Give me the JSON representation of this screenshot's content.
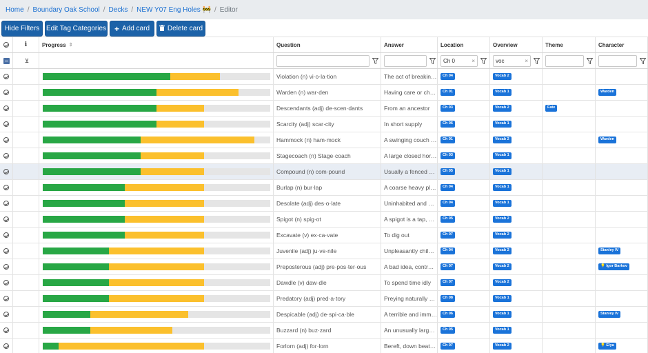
{
  "breadcrumb": [
    "Home",
    "Boundary Oak School",
    "Decks",
    "NEW Y07 Eng Holes 🚧",
    "Editor"
  ],
  "toolbar": {
    "hide_filters": "Hide Filters",
    "edit_tags": "Edit Tag Categories",
    "add_card": "Add card",
    "delete_card": "Delete card"
  },
  "columns": {
    "progress": "Progress",
    "question": "Question",
    "answer": "Answer",
    "location": "Location",
    "overview": "Overview",
    "theme": "Theme",
    "character": "Character"
  },
  "filters": {
    "location": "Ch 0",
    "overview": "voc",
    "question": "",
    "answer": "",
    "theme": "",
    "character": ""
  },
  "colors": {
    "green": "#28a745",
    "yellow": "#fbc02d",
    "badge": "#1a73d9"
  },
  "rows": [
    {
      "q": "Violation (n) vi·o·la·tion",
      "a": "The act of breaking a rule",
      "loc": "Ch 04",
      "ov": "Vocab 2",
      "theme": "",
      "char": "",
      "g": 0.56,
      "y": 0.78,
      "sel": false
    },
    {
      "q": "Warden (n) war·den",
      "a": "Having care or charge of",
      "loc": "Ch 01",
      "ov": "Vocab 1",
      "theme": "",
      "char": "Warden",
      "g": 0.5,
      "y": 0.86,
      "sel": false
    },
    {
      "q": "Descendants (adj) de·scen·dants",
      "a": "From an ancestor",
      "loc": "Ch 03",
      "ov": "Vocab 2",
      "theme": "Fate",
      "char": "",
      "g": 0.5,
      "y": 0.71,
      "sel": false
    },
    {
      "q": "Scarcity (adj) scar·city",
      "a": "In short supply",
      "loc": "Ch 06",
      "ov": "Vocab 1",
      "theme": "",
      "char": "",
      "g": 0.5,
      "y": 0.71,
      "sel": false
    },
    {
      "q": "Hammock (n) ham·mock",
      "a": "A swinging couch or bed",
      "loc": "Ch 01",
      "ov": "Vocab 2",
      "theme": "",
      "char": "Warden",
      "g": 0.43,
      "y": 0.93,
      "sel": false
    },
    {
      "q": "Stagecoach (n) Stage·coach",
      "a": "A large closed horse-drawn",
      "loc": "Ch 03",
      "ov": "Vocab 1",
      "theme": "",
      "char": "",
      "g": 0.43,
      "y": 0.71,
      "sel": false
    },
    {
      "q": "Compound (n) com·pound",
      "a": "Usually a fenced or walled",
      "loc": "Ch 05",
      "ov": "Vocab 1",
      "theme": "",
      "char": "",
      "g": 0.43,
      "y": 0.71,
      "sel": true
    },
    {
      "q": "Burlap (n) bur·lap",
      "a": "A coarse heavy plain-woven",
      "loc": "Ch 04",
      "ov": "Vocab 1",
      "theme": "",
      "char": "",
      "g": 0.36,
      "y": 0.71,
      "sel": false
    },
    {
      "q": "Desolate (adj) des·o·late",
      "a": "Uninhabited and gloomy",
      "loc": "Ch 04",
      "ov": "Vocab 1",
      "theme": "",
      "char": "",
      "g": 0.36,
      "y": 0.71,
      "sel": false
    },
    {
      "q": "Spigot (n) spig·ot",
      "a": "A spigot is a tap, a valve",
      "loc": "Ch 05",
      "ov": "Vocab 2",
      "theme": "",
      "char": "",
      "g": 0.36,
      "y": 0.71,
      "sel": false
    },
    {
      "q": "Excavate (v) ex·ca·vate",
      "a": "To dig out",
      "loc": "Ch 07",
      "ov": "Vocab 2",
      "theme": "",
      "char": "",
      "g": 0.36,
      "y": 0.71,
      "sel": false
    },
    {
      "q": "Juvenile (adj) ju·ve·nile",
      "a": "Unpleasantly childish",
      "loc": "Ch 04",
      "ov": "Vocab 2",
      "theme": "",
      "char": "Stanley IV",
      "g": 0.29,
      "y": 0.71,
      "sel": false
    },
    {
      "q": "Preposterous (adj) pre·pos·ter·ous",
      "a": "A bad idea, contrary to",
      "loc": "Ch 07",
      "ov": "Vocab 2",
      "theme": "",
      "char": "💡 Igor Barkov",
      "g": 0.29,
      "y": 0.71,
      "sel": false
    },
    {
      "q": "Dawdle (v) daw·dle",
      "a": "To spend time idly",
      "loc": "Ch 07",
      "ov": "Vocab 2",
      "theme": "",
      "char": "",
      "g": 0.29,
      "y": 0.71,
      "sel": false
    },
    {
      "q": "Predatory (adj) pred·a·tory",
      "a": "Preying naturally on others",
      "loc": "Ch 08",
      "ov": "Vocab 1",
      "theme": "",
      "char": "",
      "g": 0.29,
      "y": 0.71,
      "sel": false
    },
    {
      "q": "Despicable (adj) de·spi·ca·ble",
      "a": "A terrible and immoral",
      "loc": "Ch 06",
      "ov": "Vocab 1",
      "theme": "",
      "char": "Stanley IV",
      "g": 0.21,
      "y": 0.64,
      "sel": false
    },
    {
      "q": "Buzzard (n) buz·zard",
      "a": "An unusually large bird",
      "loc": "Ch 05",
      "ov": "Vocab 1",
      "theme": "",
      "char": "",
      "g": 0.21,
      "y": 0.57,
      "sel": false
    },
    {
      "q": "Forlorn (adj) for·lorn",
      "a": "Bereft, down beat, sad",
      "loc": "Ch 07",
      "ov": "Vocab 2",
      "theme": "",
      "char": "💡 Elya",
      "g": 0.07,
      "y": 0.71,
      "sel": false
    }
  ]
}
